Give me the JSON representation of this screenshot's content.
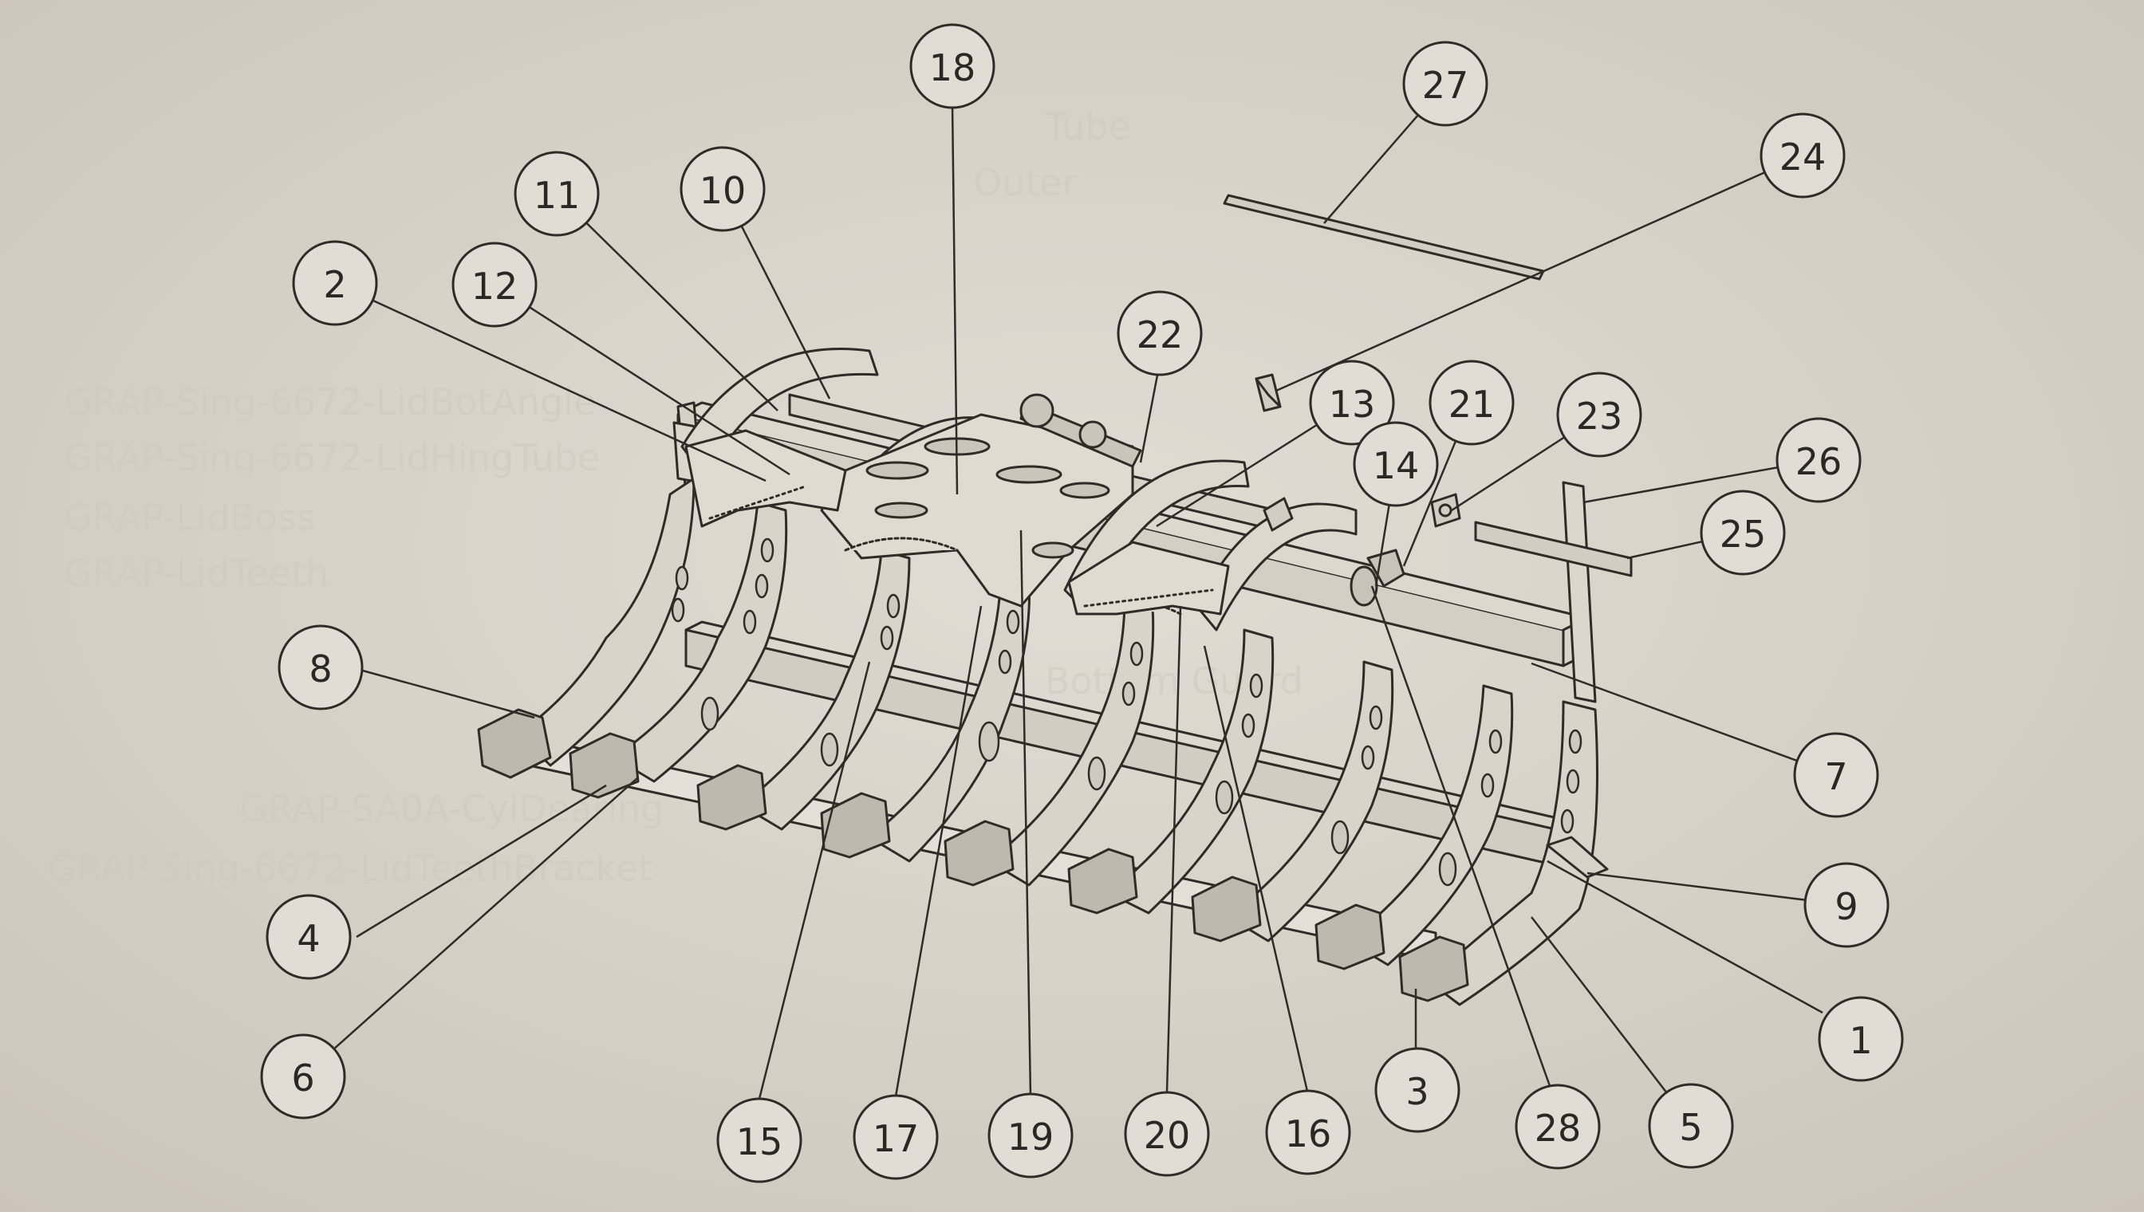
{
  "diagram": {
    "callouts": [
      {
        "id": "c18",
        "label": "18"
      },
      {
        "id": "c27",
        "label": "27"
      },
      {
        "id": "c24",
        "label": "24"
      },
      {
        "id": "c11",
        "label": "11"
      },
      {
        "id": "c10",
        "label": "10"
      },
      {
        "id": "c2",
        "label": "2"
      },
      {
        "id": "c12",
        "label": "12"
      },
      {
        "id": "c22",
        "label": "22"
      },
      {
        "id": "c13",
        "label": "13"
      },
      {
        "id": "c21",
        "label": "21"
      },
      {
        "id": "c23",
        "label": "23"
      },
      {
        "id": "c14",
        "label": "14"
      },
      {
        "id": "c26",
        "label": "26"
      },
      {
        "id": "c25",
        "label": "25"
      },
      {
        "id": "c8",
        "label": "8"
      },
      {
        "id": "c7",
        "label": "7"
      },
      {
        "id": "c9",
        "label": "9"
      },
      {
        "id": "c4",
        "label": "4"
      },
      {
        "id": "c1",
        "label": "1"
      },
      {
        "id": "c6",
        "label": "6"
      },
      {
        "id": "c3",
        "label": "3"
      },
      {
        "id": "c5",
        "label": "5"
      },
      {
        "id": "c28",
        "label": "28"
      },
      {
        "id": "c15",
        "label": "15"
      },
      {
        "id": "c17",
        "label": "17"
      },
      {
        "id": "c19",
        "label": "19"
      },
      {
        "id": "c20",
        "label": "20"
      },
      {
        "id": "c16",
        "label": "16"
      }
    ],
    "bleed_through_text": [
      "GRAP-Sing-6672-LidBotAngle",
      "GRAP-Sing-6672-LidHingTube",
      "GRAP-LidBoss",
      "GRAP-LidTeeth",
      "GRAP-Sing-6672-LidTeethBracket",
      "GRAP-SA0A-CylDearing",
      "Outer",
      "Tube",
      "Bottom Guard"
    ]
  }
}
